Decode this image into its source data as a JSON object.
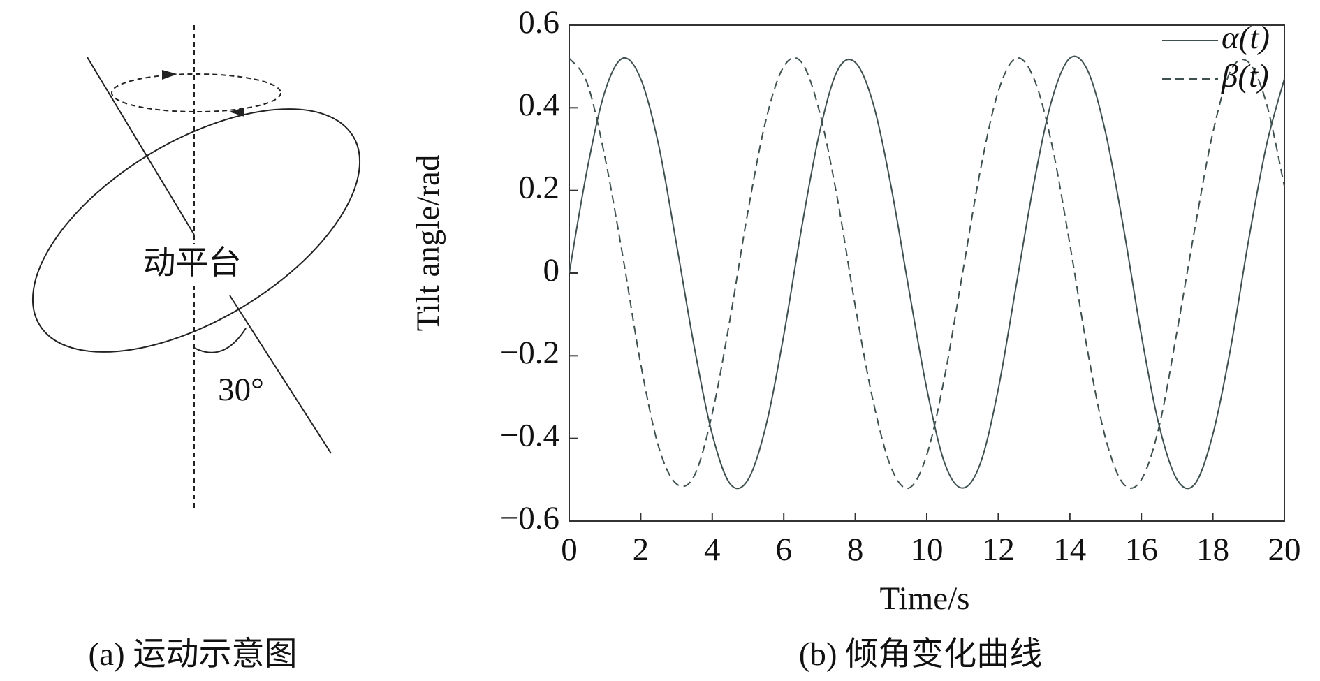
{
  "diagram": {
    "platform_label": "动平台",
    "angle_label": "30°"
  },
  "captions": {
    "a": "(a) 运动示意图",
    "b": "(b) 倾角变化曲线"
  },
  "chart_data": {
    "type": "line",
    "xlabel": "Time/s",
    "ylabel": "Tilt angle/rad",
    "x": [
      0,
      0.5,
      1,
      1.5,
      2,
      2.5,
      3,
      3.5,
      4,
      4.5,
      5,
      5.5,
      6,
      6.5,
      7,
      7.5,
      8,
      8.5,
      9,
      9.5,
      10,
      10.5,
      11,
      11.5,
      12,
      12.5,
      13,
      13.5,
      14,
      14.5,
      15,
      15.5,
      16,
      16.5,
      17,
      17.5,
      18,
      18.5,
      19,
      19.5,
      20
    ],
    "series": [
      {
        "name": "α(t)",
        "color": "#3f5050",
        "linestyle": "solid",
        "values": [
          0,
          0.25,
          0.44,
          0.52,
          0.47,
          0.31,
          0.07,
          -0.18,
          -0.39,
          -0.51,
          -0.5,
          -0.37,
          -0.15,
          0.11,
          0.34,
          0.49,
          0.51,
          0.41,
          0.21,
          -0.04,
          -0.28,
          -0.46,
          -0.52,
          -0.46,
          -0.28,
          -0.03,
          0.22,
          0.42,
          0.52,
          0.49,
          0.34,
          0.11,
          -0.15,
          -0.37,
          -0.5,
          -0.51,
          -0.39,
          -0.18,
          0.08,
          0.31,
          0.47
        ]
      },
      {
        "name": "β(t)",
        "color": "#3f5050",
        "linestyle": "dashed",
        "values": [
          0.52,
          0.46,
          0.28,
          0.04,
          -0.22,
          -0.42,
          -0.51,
          -0.49,
          -0.34,
          -0.11,
          0.15,
          0.37,
          0.5,
          0.51,
          0.39,
          0.18,
          -0.08,
          -0.31,
          -0.47,
          -0.52,
          -0.44,
          -0.25,
          0,
          0.25,
          0.44,
          0.52,
          0.47,
          0.31,
          0.07,
          -0.19,
          -0.4,
          -0.51,
          -0.5,
          -0.37,
          -0.14,
          0.11,
          0.34,
          0.49,
          0.51,
          0.41,
          0.21
        ]
      }
    ],
    "xlim": [
      0,
      20
    ],
    "xticks": [
      0,
      2,
      4,
      6,
      8,
      10,
      12,
      14,
      16,
      18,
      20
    ],
    "ylim": [
      -0.6,
      0.6
    ],
    "yticks": [
      {
        "value": -0.6,
        "label": "−0.6"
      },
      {
        "value": -0.4,
        "label": "−0.4"
      },
      {
        "value": -0.2,
        "label": "−0.2"
      },
      0,
      0.2,
      0.4,
      0.6
    ],
    "legend": "upper right",
    "grid": false
  }
}
